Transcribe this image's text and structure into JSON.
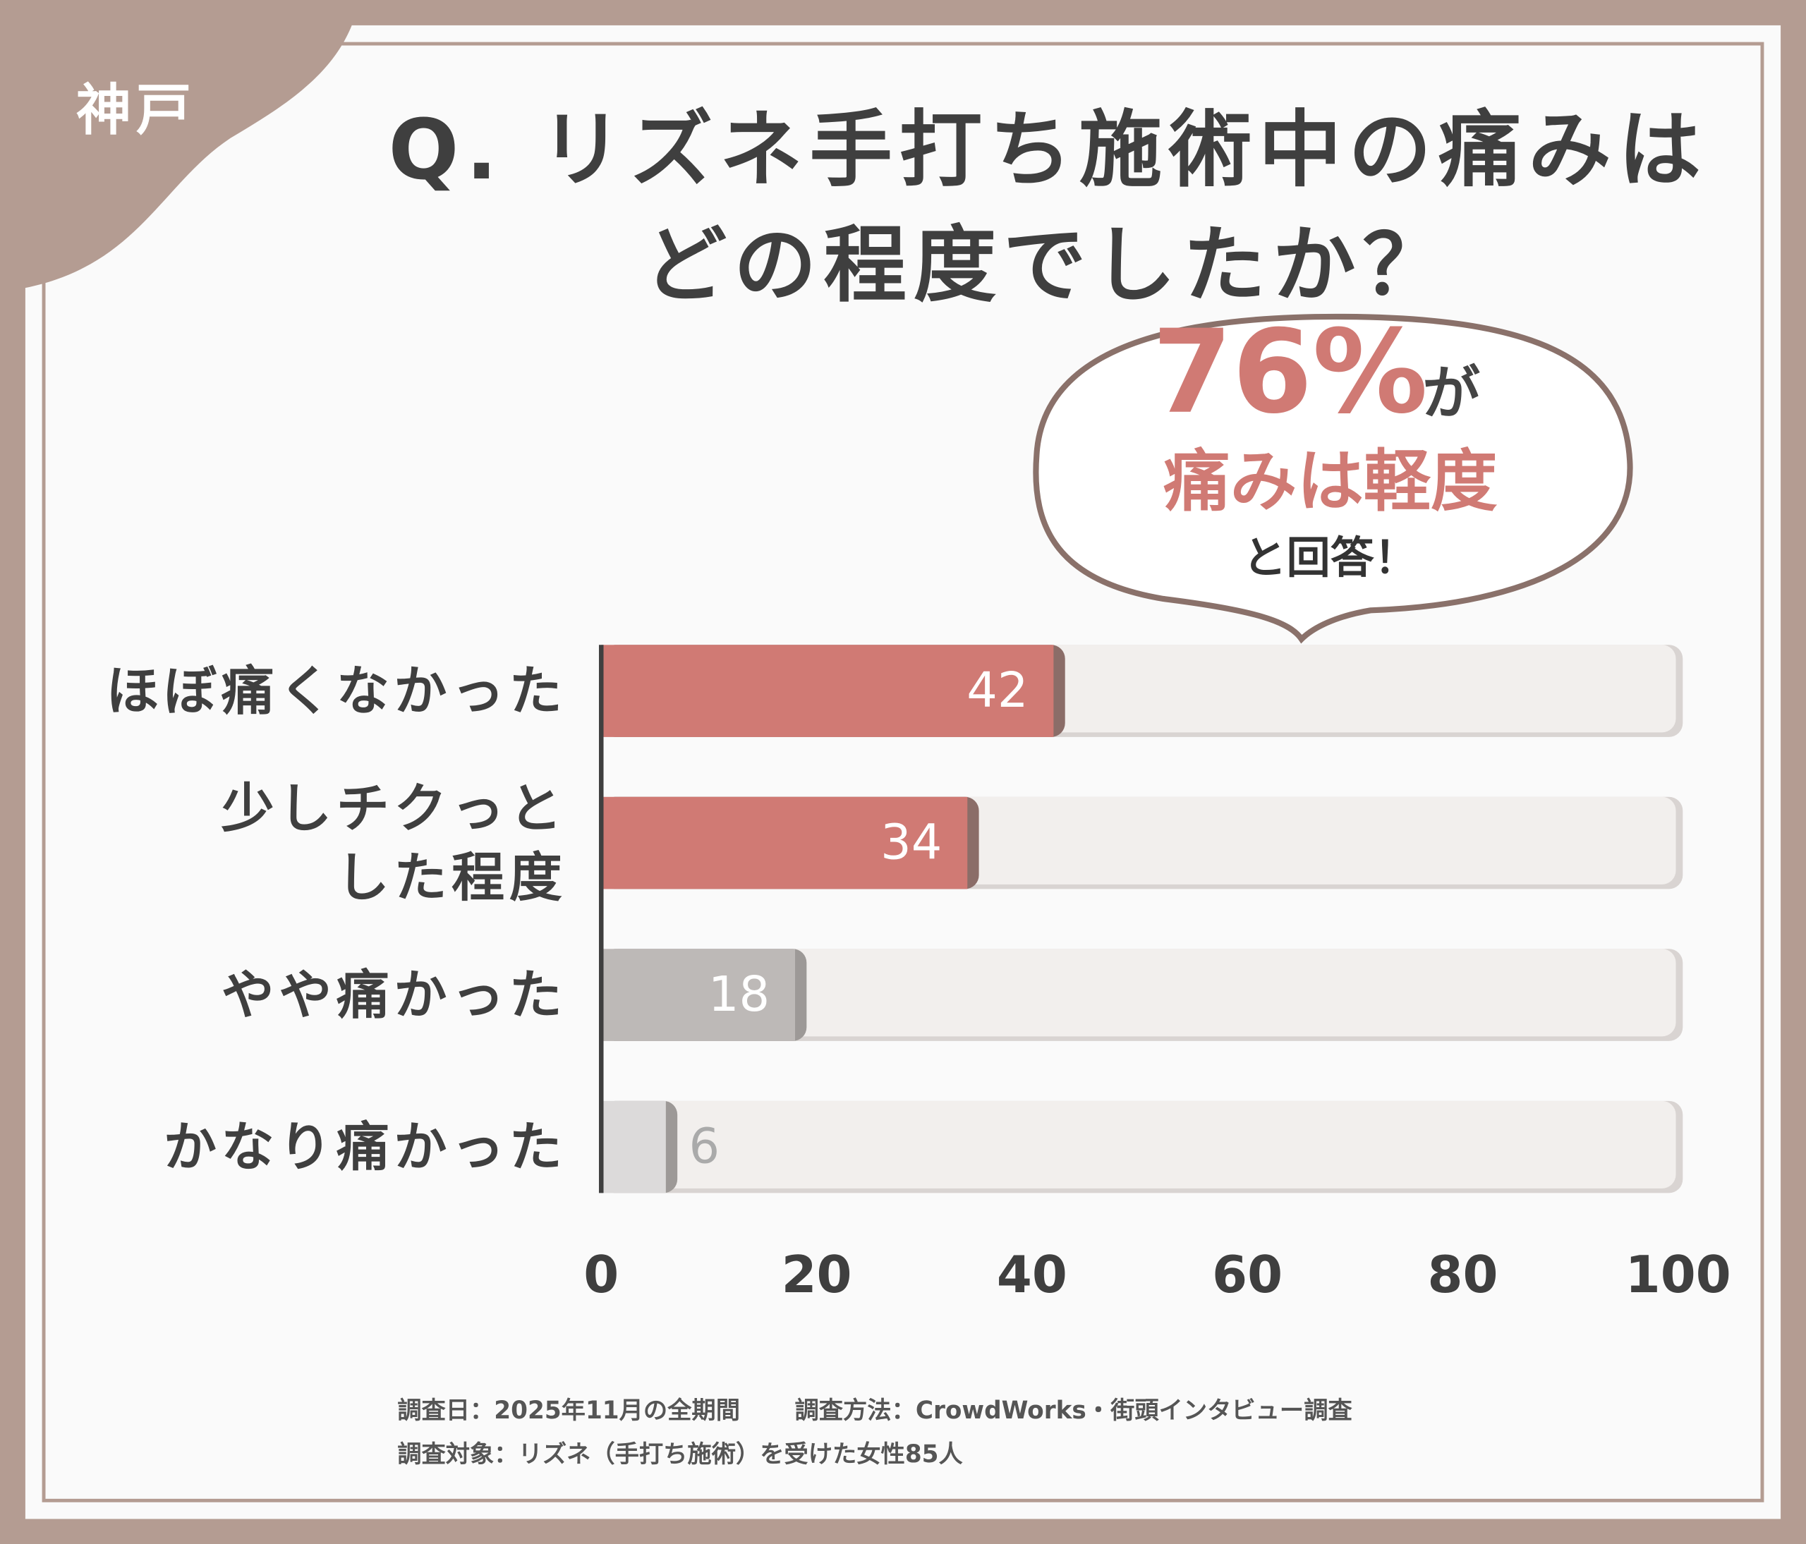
{
  "region": "神戸",
  "chart_data": {
    "type": "bar",
    "orientation": "horizontal",
    "title": "Q. リズネ手打ち施術中の痛みは\nどの程度でしたか？",
    "categories": [
      "ほぼ痛くなかった",
      "少しチクっと\nした程度",
      "やや痛かった",
      "かなり痛かった"
    ],
    "values": [
      42,
      34,
      18,
      6
    ],
    "colors": [
      "#d07a74",
      "#d07a74",
      "#bdb9b7",
      "#dcdada"
    ],
    "xlim": [
      0,
      100
    ],
    "xticks": [
      0,
      20,
      40,
      60,
      80,
      100
    ],
    "annotations": [
      "76%",
      "が",
      "痛みは軽度",
      "と回答！"
    ]
  },
  "notes": [
    "調査日：2025年11月の全期間",
    "調査方法：CrowdWorks・街頭インタビュー調査",
    "調査対象：リズネ（手打ち施術）を受けた女性85人"
  ]
}
